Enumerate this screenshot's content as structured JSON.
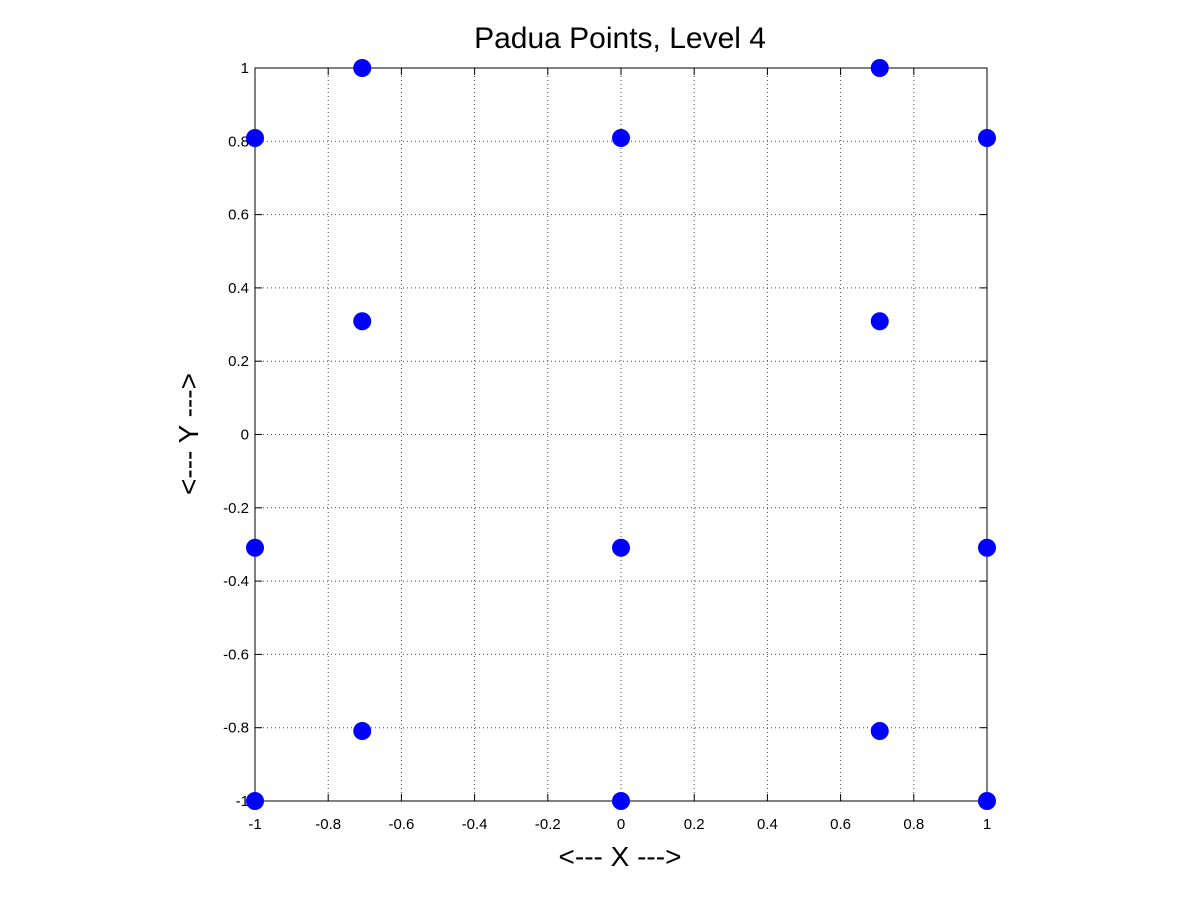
{
  "chart_data": {
    "type": "scatter",
    "title": "Padua Points, Level 4",
    "xlabel": "<--- X --->",
    "ylabel": "<--- Y --->",
    "xlim": [
      -1,
      1
    ],
    "ylim": [
      -1,
      1
    ],
    "x_ticks": [
      -1,
      -0.8,
      -0.6,
      -0.4,
      -0.2,
      0,
      0.2,
      0.4,
      0.6,
      0.8,
      1
    ],
    "y_ticks": [
      -1,
      -0.8,
      -0.6,
      -0.4,
      -0.2,
      0,
      0.2,
      0.4,
      0.6,
      0.8,
      1
    ],
    "x_tick_labels": [
      "-1",
      "-0.8",
      "-0.6",
      "-0.4",
      "-0.2",
      "0",
      "0.2",
      "0.4",
      "0.6",
      "0.8",
      "1"
    ],
    "y_tick_labels": [
      "-1",
      "-0.8",
      "-0.6",
      "-0.4",
      "-0.2",
      "0",
      "0.2",
      "0.4",
      "0.6",
      "0.8",
      "1"
    ],
    "grid": true,
    "marker_color": "#0000ff",
    "points": [
      {
        "x": -1,
        "y": -1
      },
      {
        "x": -1,
        "y": -0.309
      },
      {
        "x": -1,
        "y": 0.809
      },
      {
        "x": -0.707,
        "y": -0.809
      },
      {
        "x": -0.707,
        "y": 0.309
      },
      {
        "x": -0.707,
        "y": 1
      },
      {
        "x": 0,
        "y": -1
      },
      {
        "x": 0,
        "y": -0.309
      },
      {
        "x": 0,
        "y": 0.809
      },
      {
        "x": 0.707,
        "y": -0.809
      },
      {
        "x": 0.707,
        "y": 0.309
      },
      {
        "x": 0.707,
        "y": 1
      },
      {
        "x": 1,
        "y": -1
      },
      {
        "x": 1,
        "y": -0.309
      },
      {
        "x": 1,
        "y": 0.809
      }
    ]
  }
}
